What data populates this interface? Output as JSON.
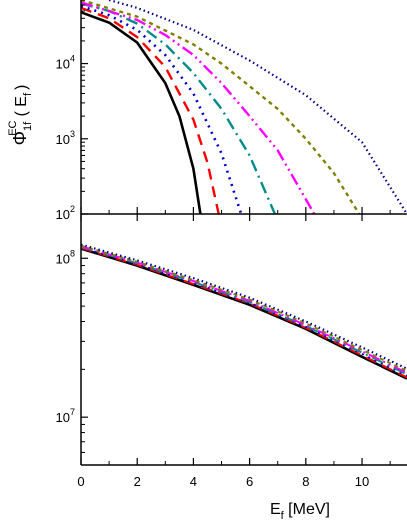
{
  "chart_data": [
    {
      "type": "line",
      "panel": "top",
      "yscale": "log",
      "ylim": [
        100,
        70000
      ],
      "xlim": [
        0,
        11.6
      ],
      "ylabel": {
        "main": "Φ",
        "sup": "EC",
        "sub": "1f",
        "arg": "( E",
        "arg_sub": "f",
        "close": ")"
      },
      "xticks": [
        0,
        2,
        4,
        6,
        8,
        10
      ],
      "yticks": [
        {
          "value": 100,
          "base": "10",
          "exp": "2"
        },
        {
          "value": 1000,
          "base": "10",
          "exp": "3"
        },
        {
          "value": 10000,
          "base": "10",
          "exp": "4"
        }
      ],
      "series": [
        {
          "color": "#000000",
          "dash": "solid",
          "width": 2.6,
          "x": [
            0,
            1,
            2,
            3,
            3.5,
            4.0,
            4.25
          ],
          "y": [
            48000,
            35000,
            19000,
            5500,
            2000,
            400,
            100
          ]
        },
        {
          "color": "#ff0000",
          "dash": "11,7",
          "width": 2.4,
          "x": [
            0,
            1,
            2,
            3,
            4,
            4.5,
            4.9
          ],
          "y": [
            55000,
            40000,
            22500,
            9000,
            1800,
            480,
            100
          ]
        },
        {
          "color": "#0000cc",
          "dash": "2,5",
          "width": 2.6,
          "x": [
            0,
            1,
            2,
            3,
            4,
            5,
            5.7
          ],
          "y": [
            58000,
            44000,
            28000,
            13000,
            4000,
            640,
            100
          ]
        },
        {
          "color": "#008b8b",
          "dash": "12,5,2,5",
          "width": 2.4,
          "x": [
            0,
            1,
            2,
            3,
            4,
            5,
            6,
            6.9
          ],
          "y": [
            63000,
            50000,
            34000,
            18000,
            7500,
            2500,
            600,
            100
          ]
        },
        {
          "color": "#ff00ff",
          "dash": "12,4,2,4,2,4",
          "width": 2.4,
          "x": [
            0,
            2,
            3,
            4,
            5,
            6,
            7,
            8.3
          ],
          "y": [
            65000,
            38000,
            24000,
            13000,
            5500,
            2000,
            700,
            100
          ]
        },
        {
          "color": "#808000",
          "dash": "4,4",
          "width": 2.4,
          "x": [
            0,
            2,
            4,
            5,
            6,
            7,
            8,
            9,
            9.9
          ],
          "y": [
            70000,
            42000,
            18000,
            10000,
            5000,
            2500,
            1000,
            350,
            100
          ]
        },
        {
          "color": "#00008b",
          "dash": "1.5,3",
          "width": 2.2,
          "x": [
            1,
            2,
            4,
            6,
            8,
            10,
            11.6
          ],
          "y": [
            70000,
            55000,
            28000,
            11000,
            3800,
            900,
            100
          ]
        }
      ]
    },
    {
      "type": "line",
      "panel": "bottom",
      "yscale": "log",
      "ylim": [
        5000000,
        190000000
      ],
      "xlim": [
        0,
        11.6
      ],
      "xlabel": {
        "main": "E",
        "sub": "f",
        "unit": " [MeV]"
      },
      "xticks": [
        0,
        2,
        4,
        6,
        8,
        10
      ],
      "xtick_labels": [
        "0",
        "2",
        "4",
        "6",
        "8",
        "10"
      ],
      "yticks": [
        {
          "value": 10000000,
          "base": "10",
          "exp": "7"
        },
        {
          "value": 100000000,
          "base": "10",
          "exp": "8"
        }
      ],
      "series": [
        {
          "color": "#000000",
          "dash": "solid",
          "width": 2.6,
          "x": [
            0,
            2,
            4,
            6,
            8,
            10,
            11.6
          ],
          "y": [
            115000000,
            90000000,
            68000000,
            51000000,
            36000000,
            24000000,
            17500000
          ]
        },
        {
          "color": "#ff0000",
          "dash": "11,7",
          "width": 2.0,
          "x": [
            0,
            2,
            4,
            6,
            8,
            10,
            11.6
          ],
          "y": [
            116000000,
            91000000,
            69000000,
            52000000,
            36500000,
            24500000,
            17800000
          ]
        },
        {
          "color": "#0000cc",
          "dash": "2,5",
          "width": 2.0,
          "x": [
            0,
            2,
            4,
            6,
            8,
            10,
            11.6
          ],
          "y": [
            117000000,
            92000000,
            70000000,
            52500000,
            37000000,
            25000000,
            18200000
          ]
        },
        {
          "color": "#008b8b",
          "dash": "12,5,2,5",
          "width": 2.0,
          "x": [
            0,
            2,
            4,
            6,
            8,
            10,
            11.6
          ],
          "y": [
            118000000,
            93000000,
            71000000,
            53000000,
            37500000,
            25500000,
            18600000
          ]
        },
        {
          "color": "#ff00ff",
          "dash": "12,4,2,4,2,4",
          "width": 2.0,
          "x": [
            0,
            2,
            4,
            6,
            8,
            10,
            11.6
          ],
          "y": [
            119000000,
            94000000,
            72000000,
            54000000,
            38000000,
            26000000,
            19000000
          ]
        },
        {
          "color": "#808000",
          "dash": "4,4",
          "width": 2.0,
          "x": [
            0,
            2,
            4,
            6,
            8,
            10,
            11.6
          ],
          "y": [
            120000000,
            95000000,
            73000000,
            55000000,
            39000000,
            26500000,
            19500000
          ]
        },
        {
          "color": "#00008b",
          "dash": "1.5,3",
          "width": 2.2,
          "x": [
            0,
            2,
            4,
            6,
            8,
            10,
            11.6
          ],
          "y": [
            122000000,
            97000000,
            75000000,
            56500000,
            40000000,
            27500000,
            20200000
          ]
        }
      ]
    }
  ]
}
